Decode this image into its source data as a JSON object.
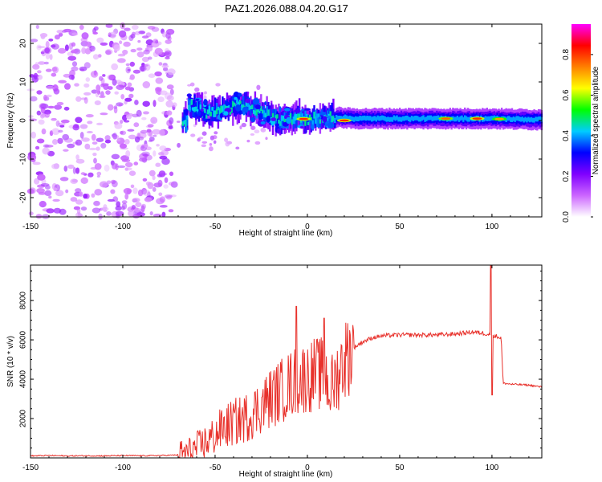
{
  "figure": {
    "title": "PAZ1.2026.088.04.20.G17"
  },
  "chart_data": [
    {
      "type": "heatmap",
      "title": "PAZ1.2026.088.04.20.G17",
      "xlabel": "Height of straight line (km)",
      "ylabel": "Frequency (Hz)",
      "xlim": [
        -150,
        127
      ],
      "ylim": [
        -25,
        25
      ],
      "xticks": [
        -150,
        -100,
        -50,
        0,
        50,
        100
      ],
      "yticks": [
        -20,
        -10,
        0,
        10,
        20
      ],
      "xtick_labels": [
        "-150",
        "-100",
        "-50",
        "0",
        "50",
        "100"
      ],
      "ytick_labels": [
        "-20",
        "-10",
        "0",
        "10",
        "20"
      ],
      "colorbar": {
        "label": "Normalized spectral amplitude",
        "range": [
          0,
          0.95
        ],
        "ticks": [
          0,
          0.2,
          0.4,
          0.6,
          0.8
        ],
        "tick_labels": [
          "0.0",
          "0.2",
          "0.4",
          "0.6",
          "0.8"
        ],
        "colormap": [
          "#ffffff",
          "#cc66ff",
          "#8000ff",
          "#0000ff",
          "#00ccff",
          "#00ff00",
          "#ffff00",
          "#ff8000",
          "#ff0000",
          "#ff00ff"
        ]
      },
      "features": {
        "noise_region_x": [
          -150,
          -72
        ],
        "noise_freq_range": [
          -25,
          25
        ],
        "main_band_center_hz": [
          [
            -65,
            4
          ],
          [
            -55,
            2
          ],
          [
            -45,
            3
          ],
          [
            -35,
            4
          ],
          [
            -25,
            2
          ],
          [
            -15,
            0
          ],
          [
            -5,
            1
          ],
          [
            0,
            0
          ],
          [
            10,
            1
          ],
          [
            25,
            0.5
          ],
          [
            50,
            0.5
          ],
          [
            75,
            0.5
          ],
          [
            100,
            0.5
          ],
          [
            127,
            0.2
          ]
        ],
        "peak_spots": [
          {
            "x": -2,
            "y": 0.4,
            "level": 0.85
          },
          {
            "x": 20,
            "y": 0,
            "level": 0.85
          },
          {
            "x": 75,
            "y": 0.5,
            "level": 0.8
          },
          {
            "x": 92,
            "y": 0.5,
            "level": 0.85
          },
          {
            "x": 104,
            "y": 0.4,
            "level": 0.75
          }
        ]
      }
    },
    {
      "type": "line",
      "xlabel": "Height of straight line (km)",
      "ylabel": "SNR (10 * v/v)",
      "xlim": [
        -150,
        127
      ],
      "ylim": [
        0,
        9800
      ],
      "xticks": [
        -150,
        -100,
        -50,
        0,
        50,
        100
      ],
      "yticks": [
        2000,
        4000,
        6000,
        8000
      ],
      "xtick_labels": [
        "-150",
        "-100",
        "-50",
        "0",
        "50",
        "100"
      ],
      "ytick_labels": [
        "2000",
        "4000",
        "6000",
        "8000"
      ],
      "color": "#e8312b",
      "series": [
        {
          "name": "SNR",
          "x": [
            -150,
            -140,
            -130,
            -120,
            -110,
            -100,
            -90,
            -80,
            -70,
            -64,
            -58,
            -52,
            -46,
            -40,
            -34,
            -28,
            -22,
            -16,
            -10,
            -5,
            0,
            5,
            10,
            12,
            15,
            20,
            25,
            30,
            35,
            40,
            50,
            60,
            70,
            80,
            90,
            98,
            100,
            102,
            105,
            106,
            110,
            120,
            127
          ],
          "y": [
            100,
            120,
            100,
            110,
            100,
            120,
            110,
            120,
            150,
            300,
            600,
            1000,
            1500,
            1800,
            2000,
            2400,
            2900,
            3300,
            3700,
            4000,
            4100,
            4300,
            4200,
            3400,
            3900,
            5000,
            5600,
            5900,
            6100,
            6200,
            6250,
            6250,
            6250,
            6300,
            6400,
            6300,
            6250,
            6200,
            6100,
            3800,
            3750,
            3700,
            3600
          ]
        }
      ],
      "spikes": [
        {
          "x": -6,
          "y": 7700
        },
        {
          "x": 9,
          "y": 7100
        },
        {
          "x": 99.5,
          "y": 9800
        },
        {
          "x": 100.2,
          "y": 3200
        }
      ]
    }
  ]
}
